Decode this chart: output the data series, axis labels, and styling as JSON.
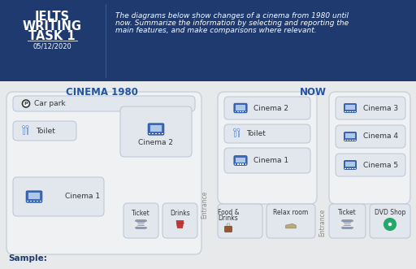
{
  "header_bg": "#1e3a6e",
  "body_bg": "#e8e9eb",
  "title_line1": "IELTS",
  "title_line2": "WRITING",
  "title_line3": "TASK 1",
  "date": "05/12/2020",
  "description_line1": "The diagrams below show changes of a cinema from 1980 until",
  "description_line2": "now. Summarize the information by selecting and reporting the",
  "description_line3": "main features, and make comparisons where relevant.",
  "section1_title": "CINEMA 1980",
  "section2_title": "NOW",
  "accent_blue": "#2155a0",
  "panel_bg": "#f0f1f3",
  "panel_border": "#c8d0db",
  "box_bg": "#e2e7ee",
  "box_border": "#b8c5d4",
  "text_dark": "#333333",
  "icon_blue": "#3a6bbf",
  "icon_blue_dark": "#1e4080",
  "entrance_color": "#888888",
  "sample_color": "#1e3a6e",
  "dvd_green": "#22a86a",
  "header_divider": "#4a6fa0"
}
